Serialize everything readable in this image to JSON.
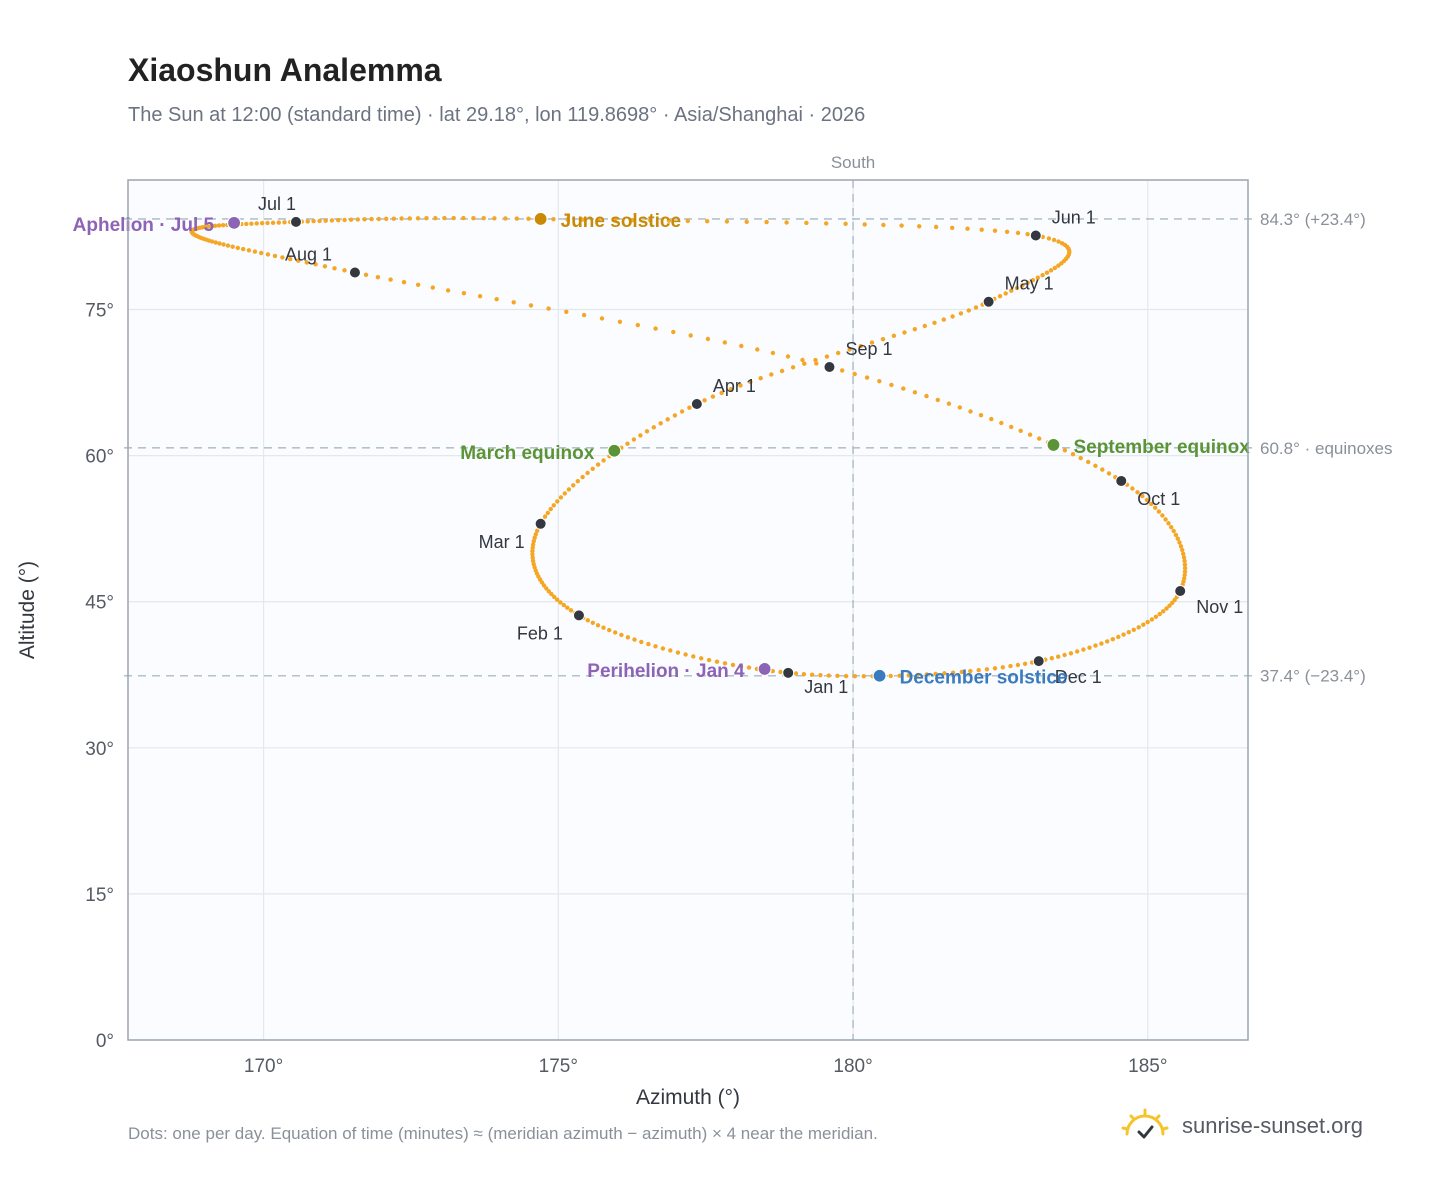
{
  "title": "Xiaoshun Analemma",
  "subtitle": "The Sun at 12:00 (standard time) · lat 29.18°, lon 119.8698° · Asia/Shanghai · 2026",
  "footnote": "Dots: one per day. Equation of time (minutes) ≈ (meridian azimuth − azimuth) × 4 near the meridian.",
  "brand": {
    "name": "sunrise-sunset.org",
    "icon": "sun-check-icon"
  },
  "colors": {
    "path": "#f5a623",
    "month_marker": "#333840",
    "june_solstice": "#c98a06",
    "december_solstice": "#3a7bbf",
    "equinox": "#5a9436",
    "apsis": "#8c63b5",
    "plot_bg": "#fafcff",
    "grid": "#e3e8ee",
    "reference_line": "#b4c2cc"
  },
  "chart_data": {
    "type": "scatter",
    "xlabel": "Azimuth (°)",
    "ylabel": "Altitude (°)",
    "xlim": [
      167.7,
      186.7
    ],
    "ylim": [
      0,
      88.3
    ],
    "xticks": [
      170,
      175,
      180,
      185
    ],
    "xtick_labels": [
      "170°",
      "175°",
      "180°",
      "185°"
    ],
    "yticks": [
      0,
      15,
      30,
      45,
      60,
      75
    ],
    "ytick_labels": [
      "0°",
      "15°",
      "30°",
      "45°",
      "60°",
      "75°"
    ],
    "grid": true,
    "meridian": {
      "azimuth": 180,
      "label": "South"
    },
    "reference_lines": [
      {
        "altitude": 84.3,
        "label": "84.3° (+23.4°)"
      },
      {
        "altitude": 60.8,
        "label": "60.8° · equinoxes"
      },
      {
        "altitude": 37.4,
        "label": "37.4° (−23.4°)"
      }
    ],
    "month_markers": [
      {
        "label": "Jan 1",
        "azimuth": 178.9,
        "altitude": 37.7
      },
      {
        "label": "Feb 1",
        "azimuth": 175.35,
        "altitude": 43.6
      },
      {
        "label": "Mar 1",
        "azimuth": 174.7,
        "altitude": 53.0
      },
      {
        "label": "Apr 1",
        "azimuth": 177.35,
        "altitude": 65.3
      },
      {
        "label": "May 1",
        "azimuth": 182.3,
        "altitude": 75.8
      },
      {
        "label": "Jun 1",
        "azimuth": 183.1,
        "altitude": 82.6
      },
      {
        "label": "Jul 1",
        "azimuth": 170.55,
        "altitude": 84.0
      },
      {
        "label": "Aug 1",
        "azimuth": 171.55,
        "altitude": 78.8
      },
      {
        "label": "Sep 1",
        "azimuth": 179.6,
        "altitude": 69.1
      },
      {
        "label": "Oct 1",
        "azimuth": 184.55,
        "altitude": 57.4
      },
      {
        "label": "Nov 1",
        "azimuth": 185.55,
        "altitude": 46.1
      },
      {
        "label": "Dec 1",
        "azimuth": 183.15,
        "altitude": 38.9
      }
    ],
    "events": [
      {
        "label": "June solstice",
        "kind": "june_solstice",
        "azimuth": 174.7,
        "altitude": 84.3
      },
      {
        "label": "March equinox",
        "kind": "equinox",
        "azimuth": 175.95,
        "altitude": 60.5
      },
      {
        "label": "September equinox",
        "kind": "equinox",
        "azimuth": 183.4,
        "altitude": 61.1
      },
      {
        "label": "December solstice",
        "kind": "december_solstice",
        "azimuth": 180.45,
        "altitude": 37.4
      },
      {
        "label": "Aphelion · Jul 5",
        "kind": "apsis",
        "azimuth": 169.5,
        "altitude": 83.9
      },
      {
        "label": "Perihelion · Jan 4",
        "kind": "apsis",
        "azimuth": 178.5,
        "altitude": 38.1
      }
    ],
    "path_key_points": [
      {
        "azimuth": 178.9,
        "altitude": 37.7
      },
      {
        "azimuth": 175.35,
        "altitude": 43.6
      },
      {
        "azimuth": 174.7,
        "altitude": 53.0
      },
      {
        "azimuth": 177.35,
        "altitude": 65.3
      },
      {
        "azimuth": 182.3,
        "altitude": 75.8
      },
      {
        "azimuth": 183.1,
        "altitude": 82.6
      },
      {
        "azimuth": 174.7,
        "altitude": 84.3
      },
      {
        "azimuth": 170.55,
        "altitude": 84.0
      },
      {
        "azimuth": 168.8,
        "altitude": 82.8
      },
      {
        "azimuth": 171.55,
        "altitude": 78.8
      },
      {
        "azimuth": 179.6,
        "altitude": 69.1
      },
      {
        "azimuth": 184.55,
        "altitude": 57.4
      },
      {
        "azimuth": 185.55,
        "altitude": 46.1
      },
      {
        "azimuth": 183.15,
        "altitude": 38.9
      }
    ]
  }
}
